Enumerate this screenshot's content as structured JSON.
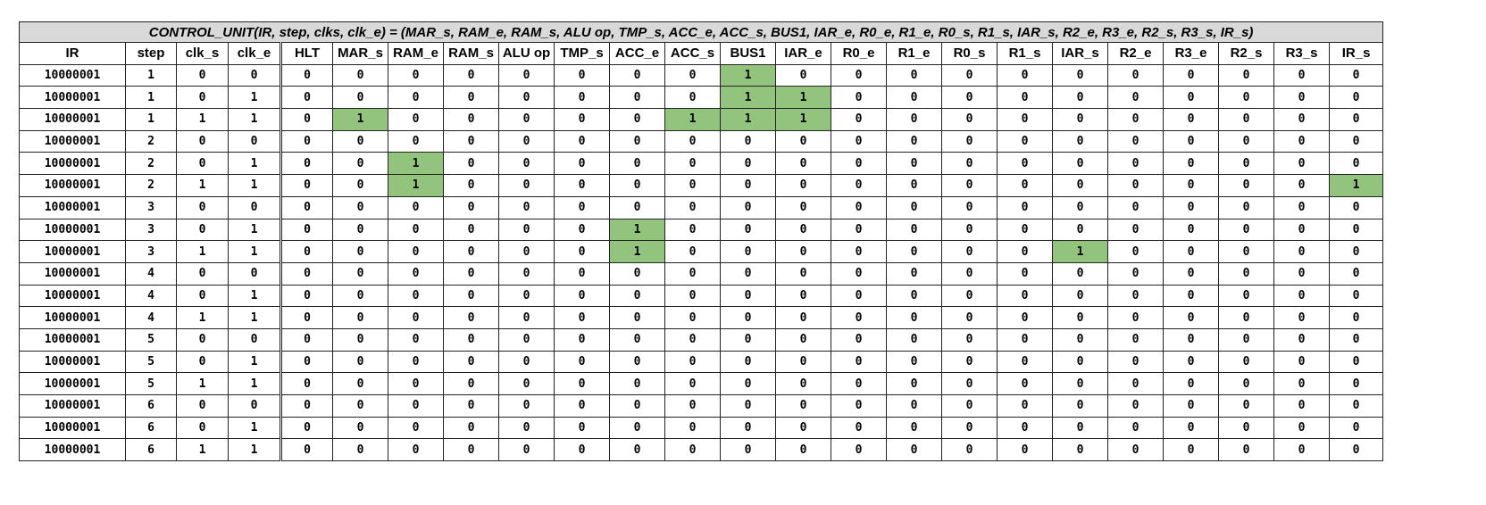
{
  "title": "CONTROL_UNIT(IR, step, clks, clk_e) = (MAR_s, RAM_e, RAM_s, ALU op, TMP_s, ACC_e, ACC_s, BUS1, IAR_e, R0_e, R1_e, R0_s,  R1_s, IAR_s, R2_e, R3_e, R2_s, R3_s, IR_s)",
  "columns": [
    "IR",
    "step",
    "clk_s",
    "clk_e",
    "HLT",
    "MAR_s",
    "RAM_e",
    "RAM_s",
    "ALU op",
    "TMP_s",
    "ACC_e",
    "ACC_s",
    "BUS1",
    "IAR_e",
    "R0_e",
    "R1_e",
    "R0_s",
    "R1_s",
    "IAR_s",
    "R2_e",
    "R3_e",
    "R2_s",
    "R3_s",
    "IR_s"
  ],
  "highlight_color": "#93c47d",
  "rows": [
    [
      "10000001",
      "1",
      "0",
      "0",
      "0",
      "0",
      "0",
      "0",
      "0",
      "0",
      "0",
      "0",
      "1",
      "0",
      "0",
      "0",
      "0",
      "0",
      "0",
      "0",
      "0",
      "0",
      "0",
      "0"
    ],
    [
      "10000001",
      "1",
      "0",
      "1",
      "0",
      "0",
      "0",
      "0",
      "0",
      "0",
      "0",
      "0",
      "1",
      "1",
      "0",
      "0",
      "0",
      "0",
      "0",
      "0",
      "0",
      "0",
      "0",
      "0"
    ],
    [
      "10000001",
      "1",
      "1",
      "1",
      "0",
      "1",
      "0",
      "0",
      "0",
      "0",
      "0",
      "1",
      "1",
      "1",
      "0",
      "0",
      "0",
      "0",
      "0",
      "0",
      "0",
      "0",
      "0",
      "0"
    ],
    [
      "10000001",
      "2",
      "0",
      "0",
      "0",
      "0",
      "0",
      "0",
      "0",
      "0",
      "0",
      "0",
      "0",
      "0",
      "0",
      "0",
      "0",
      "0",
      "0",
      "0",
      "0",
      "0",
      "0",
      "0"
    ],
    [
      "10000001",
      "2",
      "0",
      "1",
      "0",
      "0",
      "1",
      "0",
      "0",
      "0",
      "0",
      "0",
      "0",
      "0",
      "0",
      "0",
      "0",
      "0",
      "0",
      "0",
      "0",
      "0",
      "0",
      "0"
    ],
    [
      "10000001",
      "2",
      "1",
      "1",
      "0",
      "0",
      "1",
      "0",
      "0",
      "0",
      "0",
      "0",
      "0",
      "0",
      "0",
      "0",
      "0",
      "0",
      "0",
      "0",
      "0",
      "0",
      "0",
      "1"
    ],
    [
      "10000001",
      "3",
      "0",
      "0",
      "0",
      "0",
      "0",
      "0",
      "0",
      "0",
      "0",
      "0",
      "0",
      "0",
      "0",
      "0",
      "0",
      "0",
      "0",
      "0",
      "0",
      "0",
      "0",
      "0"
    ],
    [
      "10000001",
      "3",
      "0",
      "1",
      "0",
      "0",
      "0",
      "0",
      "0",
      "0",
      "1",
      "0",
      "0",
      "0",
      "0",
      "0",
      "0",
      "0",
      "0",
      "0",
      "0",
      "0",
      "0",
      "0"
    ],
    [
      "10000001",
      "3",
      "1",
      "1",
      "0",
      "0",
      "0",
      "0",
      "0",
      "0",
      "1",
      "0",
      "0",
      "0",
      "0",
      "0",
      "0",
      "0",
      "1",
      "0",
      "0",
      "0",
      "0",
      "0"
    ],
    [
      "10000001",
      "4",
      "0",
      "0",
      "0",
      "0",
      "0",
      "0",
      "0",
      "0",
      "0",
      "0",
      "0",
      "0",
      "0",
      "0",
      "0",
      "0",
      "0",
      "0",
      "0",
      "0",
      "0",
      "0"
    ],
    [
      "10000001",
      "4",
      "0",
      "1",
      "0",
      "0",
      "0",
      "0",
      "0",
      "0",
      "0",
      "0",
      "0",
      "0",
      "0",
      "0",
      "0",
      "0",
      "0",
      "0",
      "0",
      "0",
      "0",
      "0"
    ],
    [
      "10000001",
      "4",
      "1",
      "1",
      "0",
      "0",
      "0",
      "0",
      "0",
      "0",
      "0",
      "0",
      "0",
      "0",
      "0",
      "0",
      "0",
      "0",
      "0",
      "0",
      "0",
      "0",
      "0",
      "0"
    ],
    [
      "10000001",
      "5",
      "0",
      "0",
      "0",
      "0",
      "0",
      "0",
      "0",
      "0",
      "0",
      "0",
      "0",
      "0",
      "0",
      "0",
      "0",
      "0",
      "0",
      "0",
      "0",
      "0",
      "0",
      "0"
    ],
    [
      "10000001",
      "5",
      "0",
      "1",
      "0",
      "0",
      "0",
      "0",
      "0",
      "0",
      "0",
      "0",
      "0",
      "0",
      "0",
      "0",
      "0",
      "0",
      "0",
      "0",
      "0",
      "0",
      "0",
      "0"
    ],
    [
      "10000001",
      "5",
      "1",
      "1",
      "0",
      "0",
      "0",
      "0",
      "0",
      "0",
      "0",
      "0",
      "0",
      "0",
      "0",
      "0",
      "0",
      "0",
      "0",
      "0",
      "0",
      "0",
      "0",
      "0"
    ],
    [
      "10000001",
      "6",
      "0",
      "0",
      "0",
      "0",
      "0",
      "0",
      "0",
      "0",
      "0",
      "0",
      "0",
      "0",
      "0",
      "0",
      "0",
      "0",
      "0",
      "0",
      "0",
      "0",
      "0",
      "0"
    ],
    [
      "10000001",
      "6",
      "0",
      "1",
      "0",
      "0",
      "0",
      "0",
      "0",
      "0",
      "0",
      "0",
      "0",
      "0",
      "0",
      "0",
      "0",
      "0",
      "0",
      "0",
      "0",
      "0",
      "0",
      "0"
    ],
    [
      "10000001",
      "6",
      "1",
      "1",
      "0",
      "0",
      "0",
      "0",
      "0",
      "0",
      "0",
      "0",
      "0",
      "0",
      "0",
      "0",
      "0",
      "0",
      "0",
      "0",
      "0",
      "0",
      "0",
      "0"
    ]
  ]
}
